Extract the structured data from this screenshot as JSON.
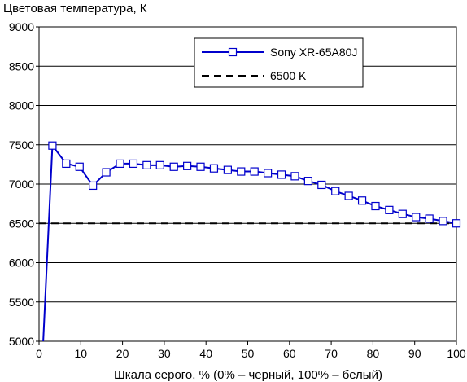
{
  "chart_data": {
    "type": "line",
    "title": "",
    "ylabel": "Цветовая температура, К",
    "xlabel": "Шкала серого, % (0% – черный, 100% – белый)",
    "xlim": [
      0,
      100
    ],
    "ylim": [
      5000,
      9000
    ],
    "xticks": [
      0,
      10,
      20,
      30,
      40,
      50,
      60,
      70,
      80,
      90,
      100
    ],
    "yticks": [
      5000,
      5500,
      6000,
      6500,
      7000,
      7500,
      8000,
      8500,
      9000
    ],
    "grid": "horizontal",
    "legend_position": "top-right",
    "series": [
      {
        "name": "Sony XR-65A80J",
        "color": "#0000cc",
        "marker": "square",
        "x": [
          1,
          3.2,
          6.5,
          9.7,
          12.9,
          16.1,
          19.4,
          22.6,
          25.8,
          29,
          32.3,
          35.5,
          38.7,
          41.9,
          45.2,
          48.4,
          51.6,
          54.8,
          58.1,
          61.3,
          64.5,
          67.7,
          71,
          74.2,
          77.4,
          80.6,
          83.9,
          87.1,
          90.3,
          93.5,
          96.8,
          100
        ],
        "values": [
          5000,
          7490,
          7260,
          7220,
          6980,
          7150,
          7260,
          7260,
          7240,
          7240,
          7220,
          7230,
          7220,
          7200,
          7180,
          7160,
          7160,
          7140,
          7120,
          7100,
          7040,
          6990,
          6910,
          6850,
          6790,
          6720,
          6670,
          6620,
          6580,
          6560,
          6530,
          6500
        ]
      },
      {
        "name": "6500 K",
        "color": "#000000",
        "dash": true,
        "x": [
          0,
          100
        ],
        "values": [
          6500,
          6500
        ]
      }
    ]
  }
}
